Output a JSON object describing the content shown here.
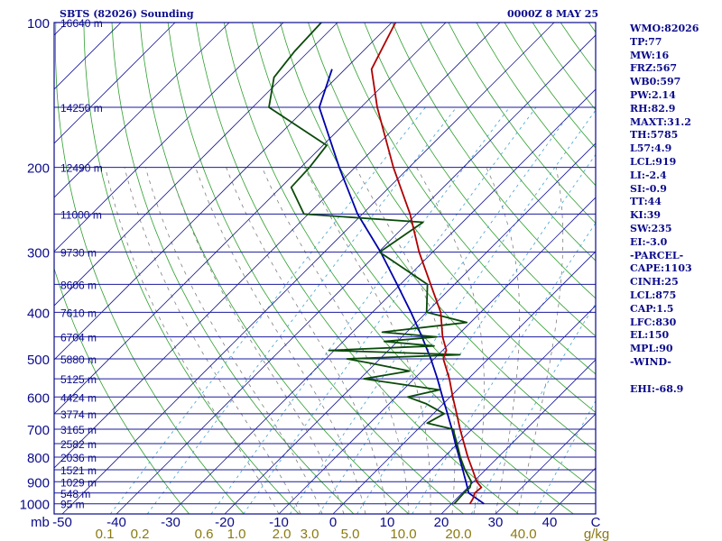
{
  "header": {
    "station": "SBTS (82026) Sounding",
    "valid": "0000Z  8 MAY 25"
  },
  "indices": [
    "WMO:82026",
    "TP:77",
    "MW:16",
    "FRZ:567",
    "WB0:597",
    "PW:2.14",
    "RH:82.9",
    "MAXT:31.2",
    "TH:5785",
    "L57:4.9",
    "LCL:919",
    "LI:-2.4",
    "SI:-0.9",
    "TT:44",
    "KI:39",
    "SW:235",
    "EI:-3.0",
    "-PARCEL-",
    "CAPE:1103",
    "CINH:25",
    "LCL:875",
    "CAP:1.5",
    "LFC:830",
    "EL:150",
    "MPL:90",
    "-WIND-",
    "",
    "EHI:-68.9"
  ],
  "colors": {
    "frame": "#0b0b8c",
    "isobar": "#1a1a9c",
    "isotherm": "#1a1a9c",
    "dry_adiabat": "#2f9e2f",
    "moist_adiabat": "#7f7f7f",
    "mixing_ratio": "#3fa0d0",
    "temperature": "#b00000",
    "dewpoint": "#0a4a0a",
    "parcel": "#0000aa",
    "axis_text": "#0b0b8c",
    "mixing_text": "#8a7a10"
  },
  "chart_data": {
    "type": "skew-t",
    "pressure_ticks": [
      "100",
      "200",
      "300",
      "400",
      "500",
      "600",
      "700",
      "800",
      "900",
      "1000"
    ],
    "height_labels": [
      {
        "p": 100,
        "label": "16640 m"
      },
      {
        "p": 150,
        "label": "14250 m"
      },
      {
        "p": 200,
        "label": "12490 m"
      },
      {
        "p": 250,
        "label": "11000 m"
      },
      {
        "p": 300,
        "label": "9730 m"
      },
      {
        "p": 350,
        "label": "8606 m"
      },
      {
        "p": 400,
        "label": "7610 m"
      },
      {
        "p": 450,
        "label": "6704 m"
      },
      {
        "p": 500,
        "label": "5880 m"
      },
      {
        "p": 550,
        "label": "5125 m"
      },
      {
        "p": 600,
        "label": "4424 m"
      },
      {
        "p": 650,
        "label": "3774 m"
      },
      {
        "p": 700,
        "label": "3165 m"
      },
      {
        "p": 750,
        "label": "2582 m"
      },
      {
        "p": 800,
        "label": "2036 m"
      },
      {
        "p": 850,
        "label": "1521 m"
      },
      {
        "p": 900,
        "label": "1029 m"
      },
      {
        "p": 950,
        "label": "548 m"
      },
      {
        "p": 1000,
        "label": "95 m"
      }
    ],
    "temperature_ticks": [
      "-50",
      "-40",
      "-30",
      "-20",
      "-10",
      "0",
      "10",
      "20",
      "30",
      "40",
      "C"
    ],
    "pressure_unit": "mb",
    "mixing_ratio_ticks": [
      "0.1",
      "0.2",
      "0.6",
      "1.0",
      "2.0",
      "3.0",
      "5.0",
      "10.0",
      "20.0",
      "40.0",
      "g/kg"
    ],
    "xlim": [
      -50,
      50
    ],
    "ylim": [
      1050,
      100
    ],
    "temperature": {
      "p": [
        1000,
        975,
        950,
        925,
        900,
        850,
        800,
        750,
        700,
        650,
        600,
        550,
        500,
        480,
        450,
        400,
        350,
        300,
        250,
        200,
        150,
        125,
        100
      ],
      "t": [
        23.4,
        23.0,
        22.3,
        22.5,
        20.6,
        17.6,
        14.4,
        11.2,
        7.8,
        4.3,
        0.5,
        -3.5,
        -8.3,
        -9.3,
        -12.5,
        -17.4,
        -24.4,
        -32.5,
        -41.2,
        -52.9,
        -67.0,
        -75.1,
        -79.3
      ]
    },
    "dewpoint": {
      "p": [
        1000,
        975,
        950,
        925,
        900,
        850,
        800,
        750,
        700,
        680,
        650,
        620,
        600,
        580,
        550,
        530,
        510,
        500,
        490,
        480,
        470,
        460,
        450,
        440,
        420,
        400,
        350,
        300,
        260,
        250,
        220,
        200,
        180,
        150,
        130,
        115,
        100
      ],
      "td": [
        20.5,
        20.4,
        20.3,
        20.4,
        19.6,
        16.2,
        13.0,
        9.9,
        6.5,
        0.6,
        2.0,
        -3.1,
        -7.8,
        -3.3,
        -19.3,
        -12.3,
        -21.1,
        -26.1,
        -6.0,
        -31.0,
        -12.4,
        -22.4,
        -13.6,
        -24.5,
        -10.7,
        -20.0,
        -25.0,
        -39.8,
        -37.3,
        -60.8,
        -68.1,
        -68.4,
        -69.3,
        -87.0,
        -91.6,
        -92.6,
        -93.0
      ]
    },
    "parcel": {
      "p": [
        1000,
        950,
        900,
        875,
        850,
        800,
        750,
        700,
        650,
        600,
        550,
        500,
        450,
        400,
        350,
        300,
        250,
        200,
        150,
        125
      ],
      "t": [
        26.0,
        21.2,
        18.6,
        17.2,
        15.8,
        12.8,
        9.6,
        6.3,
        2.6,
        -1.4,
        -5.7,
        -10.6,
        -16.3,
        -22.9,
        -30.6,
        -39.6,
        -50.9,
        -62.9,
        -77.7,
        -82.4
      ]
    }
  }
}
